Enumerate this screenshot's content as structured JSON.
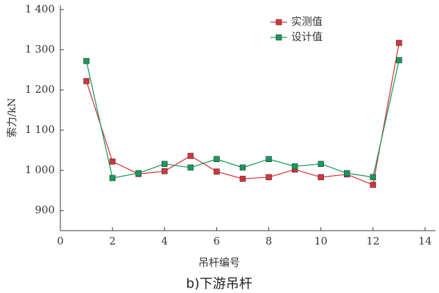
{
  "chart_data": {
    "type": "line",
    "title": "b)下游吊杆",
    "xlabel": "吊杆编号",
    "ylabel": "索力/kN",
    "x": [
      1,
      2,
      3,
      4,
      5,
      6,
      7,
      8,
      9,
      10,
      11,
      12,
      13
    ],
    "series": [
      {
        "name": "实测值",
        "color": "#d8333b",
        "values": [
          1222,
          1022,
          991,
          998,
          1036,
          997,
          979,
          983,
          1002,
          983,
          990,
          964,
          1317
        ]
      },
      {
        "name": "设计值",
        "color": "#179a5b",
        "values": [
          1272,
          981,
          993,
          1016,
          1007,
          1028,
          1007,
          1028,
          1010,
          1016,
          993,
          983,
          1274
        ]
      }
    ],
    "xlim": [
      0,
      14.4
    ],
    "xticks": [
      0,
      2,
      4,
      6,
      8,
      10,
      12,
      14
    ],
    "ylim": [
      850,
      1410
    ],
    "yticks": [
      900,
      {
        "value": 1000,
        "label": "1 000"
      },
      {
        "value": 1100,
        "label": "1 100"
      },
      {
        "value": 1200,
        "label": "1 200"
      },
      {
        "value": 1300,
        "label": "1 300"
      },
      {
        "value": 1400,
        "label": "1 400"
      }
    ],
    "legend": "upper-right"
  }
}
